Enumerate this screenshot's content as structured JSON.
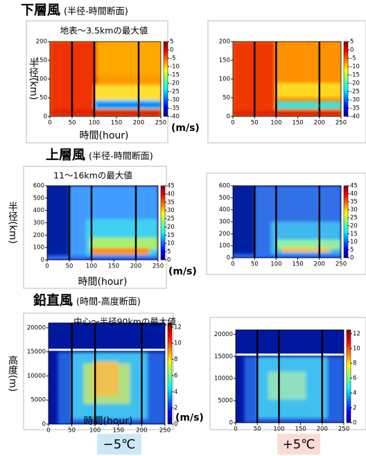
{
  "headings": [
    {
      "main": "下層風",
      "sub": "(半径-時間断面)"
    },
    {
      "main": "上層風",
      "sub": "(半径-時間断面)"
    },
    {
      "main": "鉛直風",
      "sub": "(時間-高度断面)"
    }
  ],
  "conditions": [
    "−5℃",
    "+5℃"
  ],
  "chart_data": [
    {
      "type": "heatmap",
      "title": "地表～3.5kmの最大値",
      "xlabel": "時間(hour)",
      "ylabel": "半径(km)",
      "colorbar_unit": "(m/s)",
      "xlim": [
        0,
        250
      ],
      "xticks": [
        0,
        50,
        100,
        150,
        200,
        250
      ],
      "ylim": [
        0,
        200
      ],
      "yticks": [
        0,
        50,
        100,
        150,
        200
      ],
      "clim": [
        -40,
        5
      ],
      "cticks": [
        -40,
        -35,
        -30,
        -25,
        -20,
        -15,
        -10,
        -5,
        0,
        5
      ],
      "vlines": [
        50,
        100,
        200
      ]
    },
    {
      "type": "heatmap",
      "xlim": [
        0,
        250
      ],
      "xticks": [
        0,
        50,
        100,
        150,
        200,
        250
      ],
      "ylim": [
        0,
        200
      ],
      "yticks": [
        0,
        50,
        100,
        150,
        200
      ],
      "clim": [
        -40,
        5
      ],
      "cticks": [
        -40,
        -35,
        -30,
        -25,
        -20,
        -15,
        -10,
        -5,
        0,
        5
      ],
      "vlines": [
        50,
        100,
        200
      ]
    },
    {
      "type": "heatmap",
      "title": "11～16kmの最大値",
      "xlabel": "時間(hour)",
      "ylabel": "半径(km)",
      "colorbar_unit": "(m/s)",
      "xlim": [
        0,
        250
      ],
      "xticks": [
        0,
        50,
        100,
        150,
        200,
        250
      ],
      "ylim": [
        0,
        600
      ],
      "yticks": [
        0,
        100,
        200,
        300,
        400,
        500,
        600
      ],
      "clim": [
        0,
        45
      ],
      "cticks": [
        0,
        5,
        10,
        15,
        20,
        25,
        30,
        35,
        40,
        45
      ],
      "vlines": [
        50,
        100,
        200
      ]
    },
    {
      "type": "heatmap",
      "xlim": [
        0,
        250
      ],
      "xticks": [
        0,
        50,
        100,
        150,
        200,
        250
      ],
      "ylim": [
        0,
        600
      ],
      "yticks": [
        0,
        100,
        200,
        300,
        400,
        500,
        600
      ],
      "clim": [
        0,
        45
      ],
      "cticks": [
        0,
        5,
        10,
        15,
        20,
        25,
        30,
        35,
        40,
        45
      ],
      "vlines": [
        50,
        100,
        200
      ]
    },
    {
      "type": "heatmap",
      "title": "中心～半径90kmの最大値",
      "xlabel": "時間(hour)",
      "ylabel": "高度(m)",
      "colorbar_unit": "(m/s)",
      "xlim": [
        0,
        250
      ],
      "xticks": [
        0,
        50,
        100,
        150,
        200,
        250
      ],
      "ylim": [
        0,
        21000
      ],
      "yticks": [
        0,
        5000,
        10000,
        15000,
        20000
      ],
      "clim": [
        0,
        12.5
      ],
      "cticks": [
        0,
        2,
        4,
        6,
        8,
        10,
        12
      ],
      "vlines": [
        50,
        100,
        200
      ]
    },
    {
      "type": "heatmap",
      "xlim": [
        0,
        250
      ],
      "xticks": [
        0,
        50,
        100,
        150,
        200,
        250
      ],
      "ylim": [
        0,
        21000
      ],
      "yticks": [
        0,
        5000,
        10000,
        15000,
        20000
      ],
      "clim": [
        0,
        12.5
      ],
      "cticks": [
        0,
        2,
        4,
        6,
        8,
        10,
        12
      ],
      "vlines": [
        50,
        100,
        200
      ]
    }
  ]
}
